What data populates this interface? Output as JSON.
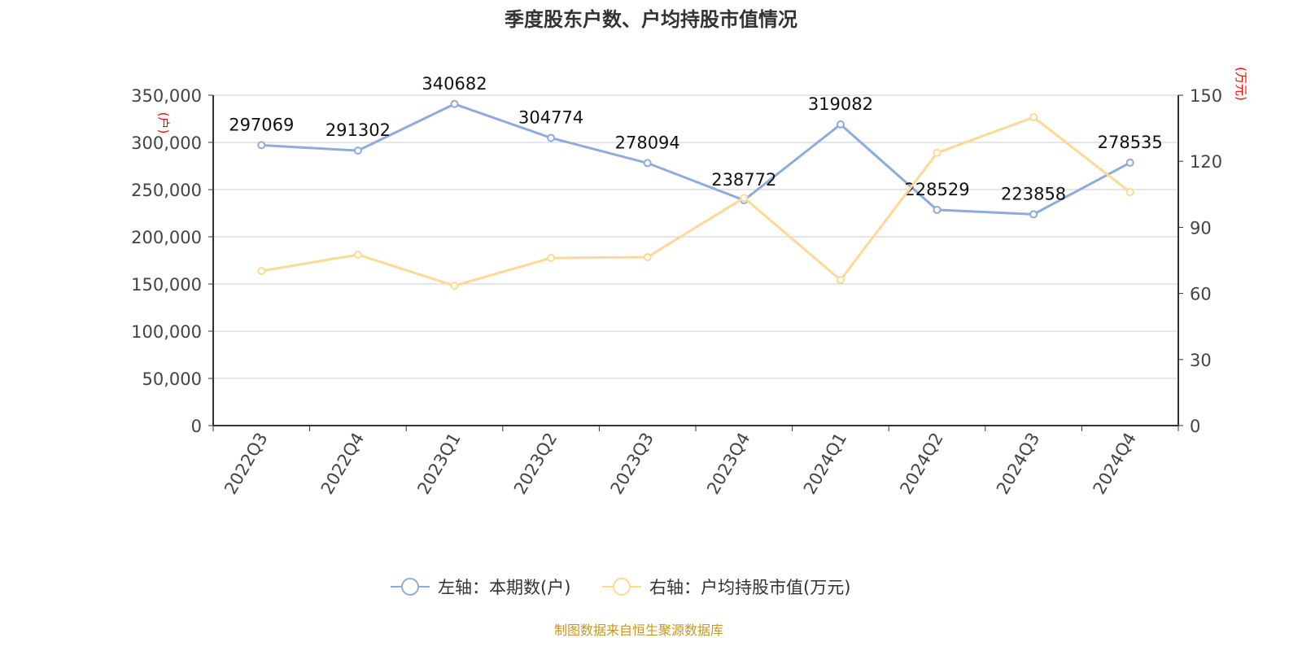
{
  "chart_data": {
    "type": "line",
    "title": "季度股东户数、户均持股市值情况",
    "categories": [
      "2022Q3",
      "2022Q4",
      "2023Q1",
      "2023Q2",
      "2023Q3",
      "2023Q4",
      "2024Q1",
      "2024Q2",
      "2024Q3",
      "2024Q4"
    ],
    "left_axis": {
      "label": "(户)",
      "ylim": [
        0,
        350000
      ],
      "ticks": [
        "0",
        "50,000",
        "100,000",
        "150,000",
        "200,000",
        "250,000",
        "300,000",
        "350,000"
      ]
    },
    "right_axis": {
      "label": "(万元)",
      "ylim": [
        0,
        150
      ],
      "ticks": [
        "0",
        "30",
        "60",
        "90",
        "120",
        "150"
      ]
    },
    "series": [
      {
        "name": "左轴：本期数(户)",
        "axis": "left",
        "color": "#8eacdb",
        "values": [
          297069,
          291302,
          340682,
          304774,
          278094,
          238772,
          319082,
          228529,
          223858,
          278535
        ],
        "labels": [
          "297069",
          "291302",
          "340682",
          "304774",
          "278094",
          "238772",
          "319082",
          "228529",
          "223858",
          "278535"
        ]
      },
      {
        "name": "右轴：户均持股市值(万元)",
        "axis": "right",
        "color": "#fdd995",
        "values": [
          70.2,
          77.6,
          63.5,
          76.1,
          76.5,
          103.4,
          66.1,
          123.8,
          140.0,
          106.0
        ]
      }
    ],
    "grid": true,
    "legend": "bottom"
  },
  "source": "制图数据来自恒生聚源数据库"
}
